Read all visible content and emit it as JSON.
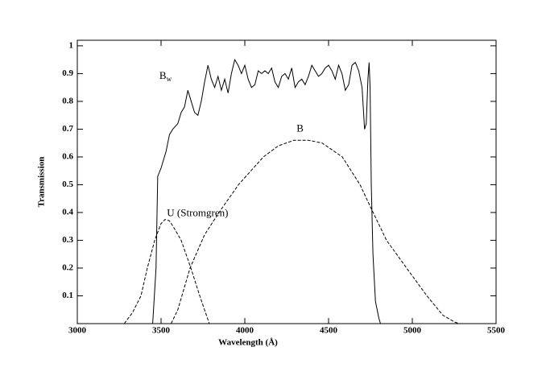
{
  "chart_data": {
    "type": "line",
    "xlabel": "Wavelength (Å)",
    "ylabel": "Transmission",
    "xlim": [
      3000,
      5500
    ],
    "ylim": [
      0,
      1.02
    ],
    "xticks": [
      3000,
      3500,
      4000,
      4500,
      5000,
      5500
    ],
    "yticks": [
      0.1,
      0.2,
      0.3,
      0.4,
      0.5,
      0.6,
      0.7,
      0.8,
      0.9,
      1
    ],
    "series": [
      {
        "color": "#000000",
        "dash": "solid",
        "x": [
          3450,
          3470,
          3480,
          3500,
          3530,
          3550,
          3570,
          3600,
          3620,
          3640,
          3660,
          3680,
          3700,
          3720,
          3740,
          3760,
          3780,
          3800,
          3820,
          3840,
          3860,
          3880,
          3900,
          3920,
          3940,
          3960,
          3980,
          4000,
          4020,
          4040,
          4060,
          4080,
          4100,
          4120,
          4140,
          4160,
          4180,
          4200,
          4220,
          4240,
          4260,
          4280,
          4300,
          4320,
          4340,
          4360,
          4380,
          4400,
          4420,
          4440,
          4460,
          4480,
          4500,
          4520,
          4540,
          4560,
          4580,
          4600,
          4620,
          4640,
          4660,
          4680,
          4700,
          4715,
          4725,
          4735,
          4742,
          4748,
          4755,
          4765,
          4780,
          4800,
          4810
        ],
        "values": [
          0,
          0.2,
          0.53,
          0.56,
          0.62,
          0.68,
          0.7,
          0.72,
          0.76,
          0.78,
          0.84,
          0.8,
          0.76,
          0.75,
          0.8,
          0.87,
          0.93,
          0.88,
          0.85,
          0.89,
          0.84,
          0.88,
          0.83,
          0.9,
          0.95,
          0.93,
          0.9,
          0.93,
          0.88,
          0.85,
          0.86,
          0.91,
          0.9,
          0.91,
          0.9,
          0.92,
          0.87,
          0.85,
          0.89,
          0.9,
          0.88,
          0.92,
          0.85,
          0.87,
          0.88,
          0.86,
          0.89,
          0.93,
          0.91,
          0.89,
          0.9,
          0.92,
          0.93,
          0.91,
          0.88,
          0.93,
          0.9,
          0.84,
          0.86,
          0.93,
          0.94,
          0.91,
          0.85,
          0.7,
          0.72,
          0.88,
          0.94,
          0.85,
          0.5,
          0.25,
          0.08,
          0.02,
          0
        ]
      },
      {
        "color": "#000000",
        "dash": "dashed",
        "x": [
          3560,
          3600,
          3673,
          3760,
          3846,
          3962,
          4111,
          4200,
          4293,
          4380,
          4462,
          4582,
          4688,
          4750,
          4846,
          4966,
          5087,
          5183,
          5255,
          5280
        ],
        "values": [
          0,
          0.05,
          0.2,
          0.32,
          0.4,
          0.5,
          0.6,
          0.64,
          0.66,
          0.66,
          0.65,
          0.6,
          0.5,
          0.42,
          0.3,
          0.2,
          0.1,
          0.03,
          0.005,
          0
        ]
      },
      {
        "color": "#000000",
        "dash": "dashed",
        "x": [
          3280,
          3330,
          3380,
          3418,
          3462,
          3500,
          3524,
          3550,
          3572,
          3620,
          3678,
          3731,
          3788
        ],
        "values": [
          0,
          0.04,
          0.1,
          0.2,
          0.3,
          0.36,
          0.375,
          0.37,
          0.35,
          0.3,
          0.2,
          0.1,
          0
        ]
      }
    ],
    "annotations": [
      {
        "text": "B",
        "sub": "w",
        "x": 3490,
        "y": 0.89
      },
      {
        "text": "B",
        "x": 4330,
        "y": 0.7
      },
      {
        "text": "U (Stromgren)",
        "x": 3535,
        "y": 0.395
      }
    ]
  }
}
